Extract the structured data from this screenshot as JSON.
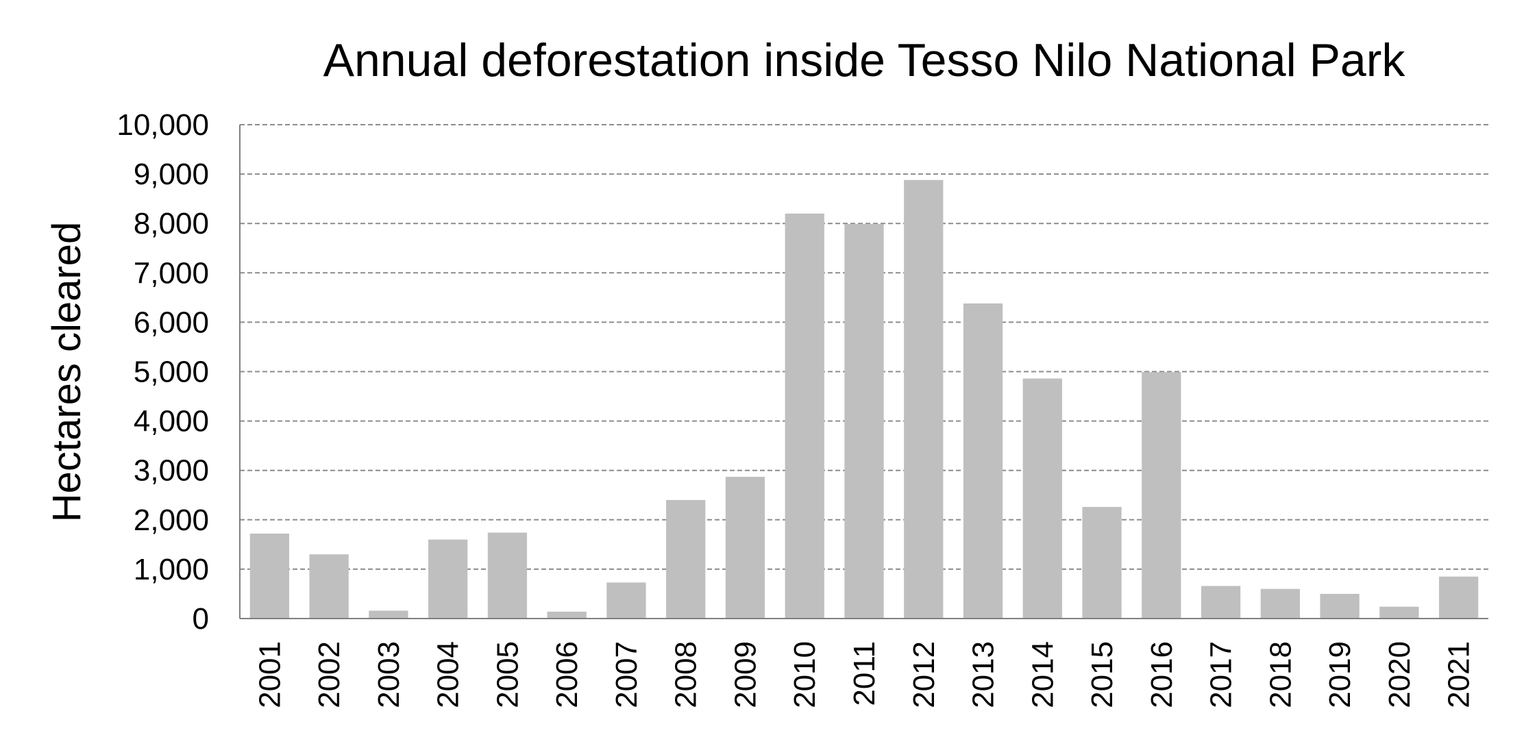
{
  "chart_data": {
    "type": "bar",
    "title": "Annual deforestation inside Tesso Nilo National Park",
    "xlabel": "",
    "ylabel": "Hectares cleared",
    "categories": [
      "2001",
      "2002",
      "2003",
      "2004",
      "2005",
      "2006",
      "2007",
      "2008",
      "2009",
      "2010",
      "2011",
      "2012",
      "2013",
      "2014",
      "2015",
      "2016",
      "2017",
      "2018",
      "2019",
      "2020",
      "2021"
    ],
    "series": [
      {
        "values": [
          1720,
          1300,
          160,
          1600,
          1740,
          140,
          730,
          2400,
          2870,
          8200,
          7990,
          8880,
          6380,
          4860,
          2260,
          4990,
          660,
          600,
          500,
          240,
          850
        ],
        "color": "#bfbfbf"
      }
    ],
    "ylim": [
      0,
      10000
    ],
    "yticks": [
      0,
      1000,
      2000,
      3000,
      4000,
      5000,
      6000,
      7000,
      8000,
      9000,
      10000
    ],
    "ytick_labels": [
      "0",
      "1,000",
      "2,000",
      "3,000",
      "4,000",
      "5,000",
      "6,000",
      "7,000",
      "8,000",
      "9,000",
      "10,000"
    ],
    "grid": true,
    "legend": "none",
    "colors": {
      "bar": "#bfbfbf",
      "grid": "#8c8c8c",
      "axis": "#808080",
      "text": "#000000"
    }
  }
}
